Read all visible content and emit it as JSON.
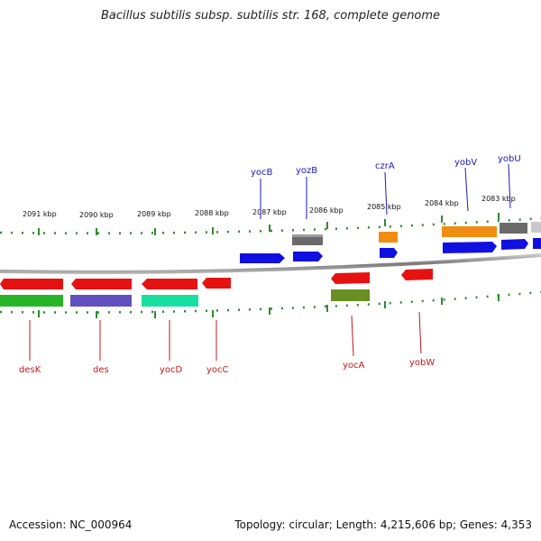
{
  "title": "Bacillus subtilis subsp. subtilis str. 168, complete genome",
  "footer": {
    "accession": "Accession: NC_000964",
    "summary": "Topology: circular; Length: 4,215,606 bp; Genes: 4,353"
  },
  "scale_labels": [
    "2091 kbp",
    "2090 kbp",
    "2089 kbp",
    "2088 kbp",
    "2087 kbp",
    "2086 kbp",
    "2085 kbp",
    "2084 kbp",
    "2083 kbp"
  ],
  "colors": {
    "backbone": "#8a8a8a",
    "tick": "#2e8b2e",
    "forward_label": "#1a1ab8",
    "reverse_label": "#c0181a"
  },
  "genes_forward": [
    {
      "name": "yocB",
      "color": "#1010e0",
      "label_color": "#1a1ab8"
    },
    {
      "name": "yozB",
      "color": "#1010e0",
      "label_color": "#1a1ab8"
    },
    {
      "name": "czrA",
      "color": "#1010e0",
      "label_color": "#1a1ab8"
    },
    {
      "name": "yobV",
      "color": "#1010e0",
      "label_color": "#1a1ab8"
    },
    {
      "name": "yobU",
      "color": "#1010e0",
      "label_color": "#1a1ab8"
    }
  ],
  "genes_reverse": [
    {
      "name": "desK",
      "color": "#e61212",
      "label_color": "#c0181a"
    },
    {
      "name": "des",
      "color": "#e61212",
      "label_color": "#c0181a"
    },
    {
      "name": "yocD",
      "color": "#e61212",
      "label_color": "#c0181a"
    },
    {
      "name": "yocC",
      "color": "#e61212",
      "label_color": "#c0181a"
    },
    {
      "name": "yocA",
      "color": "#e61212",
      "label_color": "#c0181a"
    },
    {
      "name": "yobW",
      "color": "#e61212",
      "label_color": "#c0181a"
    }
  ]
}
